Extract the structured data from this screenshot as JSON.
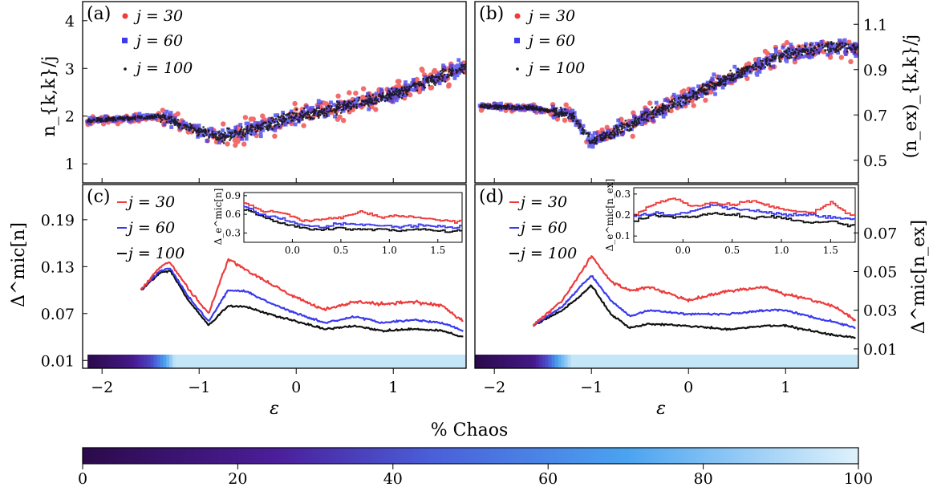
{
  "figure": {
    "colorbar_label": "% Chaos",
    "colorbar_ticks": [
      "0",
      "20",
      "40",
      "60",
      "80",
      "100"
    ],
    "colorbar_range": [
      0,
      100
    ],
    "colors": {
      "j30": "#ee3b3b",
      "j60": "#3a3aee",
      "j100": "#111111",
      "chaos_low": "#2b0a4a",
      "chaos_mid": "#5a2bbd",
      "chaos_high": "#4aa3f0",
      "chaos_full": "#c5e6f6"
    }
  },
  "chart_data": [
    {
      "panel": "(a)",
      "type": "scatter",
      "ylabel": "n_{k,k}/j",
      "y_ticks": [
        "1",
        "2",
        "3",
        "4"
      ],
      "ylim": [
        0.6,
        4.4
      ],
      "xlim": [
        -2.2,
        1.75
      ],
      "legend": [
        "j = 30",
        "j = 60",
        "j = 100"
      ],
      "trend": {
        "x": [
          -2.15,
          -1.8,
          -1.4,
          -1.1,
          -0.8,
          -0.4,
          0.0,
          0.5,
          1.0,
          1.5,
          1.75
        ],
        "y": [
          1.9,
          1.95,
          2.0,
          1.75,
          1.55,
          1.75,
          2.0,
          2.2,
          2.45,
          2.85,
          3.05
        ]
      }
    },
    {
      "panel": "(b)",
      "type": "scatter",
      "ylabel": "(n_ex)_{k,k}/j",
      "y_ticks": [
        "0.5",
        "0.7",
        "0.9",
        "1.1"
      ],
      "ylim": [
        0.4,
        1.2
      ],
      "xlim": [
        -2.2,
        1.75
      ],
      "legend": [
        "j = 30",
        "j = 60",
        "j = 100"
      ],
      "trend": {
        "x": [
          -2.2,
          -1.6,
          -1.2,
          -1.0,
          -0.8,
          -0.4,
          0.0,
          0.5,
          1.0,
          1.5,
          1.75
        ],
        "y": [
          0.74,
          0.73,
          0.7,
          0.58,
          0.62,
          0.7,
          0.78,
          0.88,
          0.97,
          1.0,
          1.0
        ]
      }
    },
    {
      "panel": "(c)",
      "type": "line",
      "ylabel": "Δ^mic[n]",
      "xlabel": "ε",
      "x_ticks": [
        "−2",
        "−1",
        "0",
        "1"
      ],
      "y_ticks": [
        "0.01",
        "0.07",
        "0.13",
        "0.19"
      ],
      "ylim": [
        0.0,
        0.235
      ],
      "xlim": [
        -2.2,
        1.75
      ],
      "legend": [
        "j = 30",
        "j = 60",
        "j = 100"
      ],
      "x": [
        -1.6,
        -1.4,
        -1.3,
        -1.1,
        -0.9,
        -0.7,
        -0.5,
        -0.3,
        0.0,
        0.3,
        0.6,
        0.9,
        1.2,
        1.5,
        1.72
      ],
      "series": [
        {
          "name": "j = 30",
          "values": [
            0.1,
            0.13,
            0.135,
            0.1,
            0.07,
            0.14,
            0.125,
            0.11,
            0.09,
            0.075,
            0.085,
            0.082,
            0.085,
            0.08,
            0.06
          ]
        },
        {
          "name": "j = 60",
          "values": [
            0.1,
            0.125,
            0.128,
            0.09,
            0.06,
            0.1,
            0.098,
            0.085,
            0.07,
            0.058,
            0.066,
            0.058,
            0.062,
            0.058,
            0.048
          ]
        },
        {
          "name": "j = 100",
          "values": [
            0.1,
            0.122,
            0.125,
            0.085,
            0.055,
            0.08,
            0.078,
            0.07,
            0.06,
            0.05,
            0.054,
            0.048,
            0.05,
            0.048,
            0.04
          ]
        }
      ],
      "chaos_bar": {
        "x": [
          -2.15,
          -1.7,
          -1.5,
          -1.35,
          -1.25,
          1.75
        ],
        "chaos": [
          0,
          15,
          35,
          70,
          100,
          100
        ]
      },
      "inset": {
        "ylabel": "Δ_e^mic[n]",
        "x_ticks": [
          "0.0",
          "0.5",
          "1.0",
          "1.5"
        ],
        "y_ticks": [
          "0.3",
          "0.6",
          "0.9"
        ],
        "xlim": [
          -0.5,
          1.75
        ],
        "ylim": [
          0.15,
          0.95
        ],
        "x": [
          -0.5,
          -0.3,
          -0.1,
          0.1,
          0.3,
          0.5,
          0.7,
          0.9,
          1.1,
          1.3,
          1.5,
          1.7
        ],
        "series": [
          {
            "name": "j = 30",
            "values": [
              0.78,
              0.65,
              0.62,
              0.5,
              0.52,
              0.55,
              0.65,
              0.55,
              0.58,
              0.55,
              0.5,
              0.48
            ]
          },
          {
            "name": "j = 60",
            "values": [
              0.72,
              0.58,
              0.52,
              0.42,
              0.4,
              0.45,
              0.44,
              0.42,
              0.4,
              0.42,
              0.4,
              0.4
            ]
          },
          {
            "name": "j = 100",
            "values": [
              0.68,
              0.55,
              0.45,
              0.38,
              0.35,
              0.38,
              0.36,
              0.36,
              0.34,
              0.36,
              0.33,
              0.33
            ]
          }
        ]
      }
    },
    {
      "panel": "(d)",
      "type": "line",
      "ylabel": "Δ^mic[n_ex]",
      "xlabel": "ε",
      "x_ticks": [
        "−2",
        "−1",
        "0",
        "1"
      ],
      "y_ticks": [
        "0.01",
        "0.03",
        "0.05",
        "0.07"
      ],
      "ylim": [
        0.0,
        0.095
      ],
      "xlim": [
        -2.2,
        1.75
      ],
      "legend": [
        "j = 30",
        "j = 60",
        "j = 100"
      ],
      "x": [
        -1.6,
        -1.3,
        -1.1,
        -1.0,
        -0.8,
        -0.6,
        -0.4,
        0.0,
        0.4,
        0.8,
        1.0,
        1.3,
        1.5,
        1.72
      ],
      "series": [
        {
          "name": "j = 30",
          "values": [
            0.022,
            0.035,
            0.05,
            0.058,
            0.045,
            0.04,
            0.042,
            0.035,
            0.04,
            0.042,
            0.038,
            0.035,
            0.032,
            0.025
          ]
        },
        {
          "name": "j = 60",
          "values": [
            0.022,
            0.032,
            0.043,
            0.048,
            0.035,
            0.027,
            0.03,
            0.028,
            0.028,
            0.03,
            0.03,
            0.026,
            0.024,
            0.021
          ]
        },
        {
          "name": "j = 100",
          "values": [
            0.022,
            0.03,
            0.038,
            0.043,
            0.028,
            0.021,
            0.023,
            0.022,
            0.02,
            0.022,
            0.022,
            0.019,
            0.017,
            0.016
          ]
        }
      ],
      "chaos_bar": {
        "x": [
          -2.2,
          -1.6,
          -1.45,
          -1.35,
          -1.2,
          1.75
        ],
        "chaos": [
          0,
          15,
          40,
          70,
          100,
          100
        ]
      },
      "inset": {
        "ylabel": "Δ_e^mic[n_ex]",
        "x_ticks": [
          "0.0",
          "0.5",
          "1.0",
          "1.5"
        ],
        "y_ticks": [
          "0.1",
          "0.2",
          "0.3"
        ],
        "xlim": [
          -0.5,
          1.75
        ],
        "ylim": [
          0.07,
          0.33
        ],
        "x": [
          -0.5,
          -0.3,
          -0.1,
          0.1,
          0.3,
          0.5,
          0.7,
          0.9,
          1.1,
          1.3,
          1.5,
          1.7
        ],
        "series": [
          {
            "name": "j = 30",
            "values": [
              0.2,
              0.25,
              0.28,
              0.24,
              0.26,
              0.25,
              0.27,
              0.24,
              0.22,
              0.21,
              0.26,
              0.2
            ]
          },
          {
            "name": "j = 60",
            "values": [
              0.19,
              0.21,
              0.2,
              0.22,
              0.25,
              0.23,
              0.22,
              0.21,
              0.2,
              0.2,
              0.19,
              0.18
            ]
          },
          {
            "name": "j = 100",
            "values": [
              0.17,
              0.2,
              0.19,
              0.19,
              0.21,
              0.2,
              0.19,
              0.19,
              0.18,
              0.16,
              0.17,
              0.15
            ]
          }
        ]
      }
    }
  ]
}
